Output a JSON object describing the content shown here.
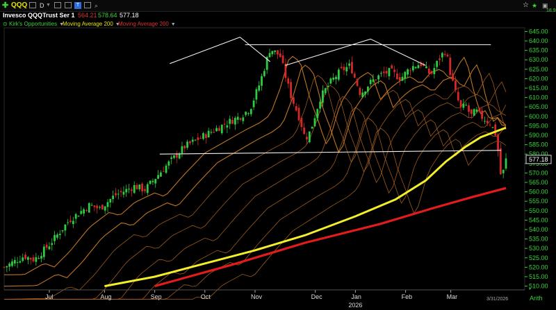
{
  "toolbar": {
    "plus_icon": "plus-icon",
    "symbol": "QQQ",
    "period": "D",
    "periodic_label": "T",
    "series_title": "Invesco QQQTrust Ser 1",
    "low": "564.21",
    "high": "578.64",
    "last": "577.18",
    "right_value": "18.90"
  },
  "indicators": [
    {
      "label": "Kirk's Opportunities",
      "color": "#39d539"
    },
    {
      "label": "Moving Average 200",
      "color": "#e6e600"
    },
    {
      "label": "Moving Average 200",
      "color": "#e03030"
    }
  ],
  "chart_data": {
    "type": "candlestick",
    "y_ticks": [
      "645.00",
      "640.00",
      "635.00",
      "630.00",
      "625.00",
      "620.00",
      "615.00",
      "610.00",
      "605.00",
      "600.00",
      "595.00",
      "590.00",
      "585.00",
      "580.00",
      "575.00",
      "570.00",
      "565.00",
      "560.00",
      "555.00",
      "550.00",
      "545.00",
      "540.00",
      "535.00",
      "530.00",
      "525.00",
      "520.00",
      "515.00",
      "510.00"
    ],
    "ylim": [
      508,
      647
    ],
    "x_ticks": [
      "Jul",
      "Aug",
      "Sep",
      "Oct",
      "Nov",
      "Dec",
      "Jan",
      "Feb",
      "Mar"
    ],
    "x_year": "2026",
    "date_label": "3/31/2026",
    "scale": "Arith",
    "last_price": "577.18",
    "ma200_yellow": [
      [
        0.2,
        510
      ],
      [
        0.3,
        515
      ],
      [
        0.4,
        522
      ],
      [
        0.5,
        529
      ],
      [
        0.6,
        537
      ],
      [
        0.7,
        547
      ],
      [
        0.78,
        556
      ],
      [
        0.84,
        566
      ],
      [
        0.88,
        576
      ],
      [
        0.92,
        584
      ],
      [
        0.95,
        589
      ],
      [
        1.0,
        594
      ]
    ],
    "ma200_red": [
      [
        0.3,
        510
      ],
      [
        0.45,
        521
      ],
      [
        0.6,
        533
      ],
      [
        0.75,
        543
      ],
      [
        0.85,
        551
      ],
      [
        0.93,
        557
      ],
      [
        1.0,
        562
      ]
    ],
    "close_path": [
      [
        0.0,
        520
      ],
      [
        0.04,
        526
      ],
      [
        0.06,
        524
      ],
      [
        0.09,
        532
      ],
      [
        0.13,
        545
      ],
      [
        0.17,
        553
      ],
      [
        0.19,
        551
      ],
      [
        0.22,
        558
      ],
      [
        0.26,
        563
      ],
      [
        0.28,
        561
      ],
      [
        0.32,
        573
      ],
      [
        0.36,
        584
      ],
      [
        0.4,
        590
      ],
      [
        0.44,
        596
      ],
      [
        0.47,
        600
      ],
      [
        0.49,
        604
      ],
      [
        0.51,
        618
      ],
      [
        0.53,
        636
      ],
      [
        0.55,
        632
      ],
      [
        0.57,
        612
      ],
      [
        0.59,
        598
      ],
      [
        0.6,
        588
      ],
      [
        0.61,
        592
      ],
      [
        0.63,
        610
      ],
      [
        0.65,
        618
      ],
      [
        0.67,
        624
      ],
      [
        0.69,
        627
      ],
      [
        0.71,
        612
      ],
      [
        0.73,
        618
      ],
      [
        0.75,
        622
      ],
      [
        0.77,
        624
      ],
      [
        0.79,
        620
      ],
      [
        0.81,
        626
      ],
      [
        0.83,
        628
      ],
      [
        0.85,
        622
      ],
      [
        0.87,
        632
      ],
      [
        0.88,
        635
      ],
      [
        0.89,
        622
      ],
      [
        0.9,
        612
      ],
      [
        0.91,
        604
      ],
      [
        0.92,
        606
      ],
      [
        0.93,
        600
      ],
      [
        0.94,
        603
      ],
      [
        0.95,
        600
      ],
      [
        0.96,
        598
      ],
      [
        0.97,
        596
      ],
      [
        0.98,
        590
      ],
      [
        0.985,
        580
      ],
      [
        0.99,
        568
      ],
      [
        0.995,
        571
      ],
      [
        1.0,
        577
      ]
    ],
    "annotations": [
      {
        "type": "line",
        "points": [
          [
            0.33,
            628
          ],
          [
            0.47,
            642
          ],
          [
            0.53,
            629
          ]
        ]
      },
      {
        "type": "line",
        "points": [
          [
            0.48,
            638
          ],
          [
            0.97,
            638
          ]
        ]
      },
      {
        "type": "line",
        "points": [
          [
            0.56,
            627
          ],
          [
            0.73,
            641
          ],
          [
            0.84,
            627
          ]
        ]
      },
      {
        "type": "line",
        "points": [
          [
            0.31,
            580
          ],
          [
            0.99,
            582
          ]
        ]
      }
    ],
    "ma_ribbon_offsets": [
      -4,
      -10,
      -17,
      -24,
      -32,
      -40,
      -48,
      -56
    ]
  }
}
